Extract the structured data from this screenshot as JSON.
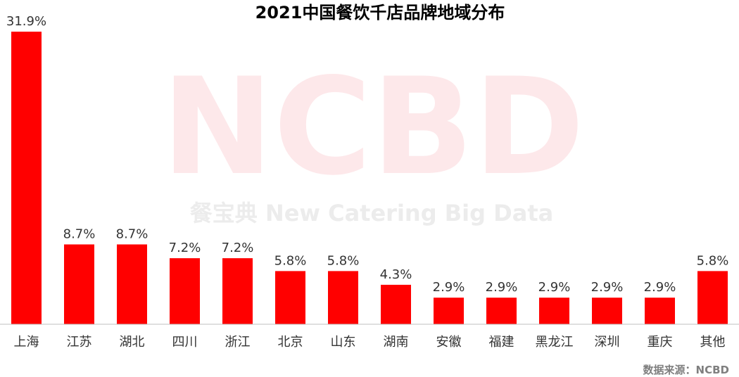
{
  "chart_data": {
    "type": "bar",
    "title": "2021中国餐饮千店品牌地域分布",
    "categories": [
      "上海",
      "江苏",
      "湖北",
      "四川",
      "浙江",
      "北京",
      "山东",
      "湖南",
      "安徽",
      "福建",
      "黑龙江",
      "深圳",
      "重庆",
      "其他"
    ],
    "values": [
      31.9,
      8.7,
      8.7,
      7.2,
      7.2,
      5.8,
      5.8,
      4.3,
      2.9,
      2.9,
      2.9,
      2.9,
      2.9,
      5.8
    ],
    "value_labels": [
      "31.9%",
      "8.7%",
      "8.7%",
      "7.2%",
      "7.2%",
      "5.8%",
      "5.8%",
      "4.3%",
      "2.9%",
      "2.9%",
      "2.9%",
      "2.9%",
      "2.9%",
      "5.8%"
    ],
    "xlabel": "",
    "ylabel": "",
    "ylim": [
      0,
      31.9
    ],
    "grid": false,
    "legend": "none",
    "bar_color": "#ff0000",
    "axis_color": "#bfbfbf"
  },
  "watermark": {
    "logo_text": "NCBD",
    "subtitle": "餐宝典 New Catering Big Data",
    "color_logo": "#fde8ea",
    "color_subtitle": "#ececec"
  },
  "source": "数据来源：NCBD"
}
